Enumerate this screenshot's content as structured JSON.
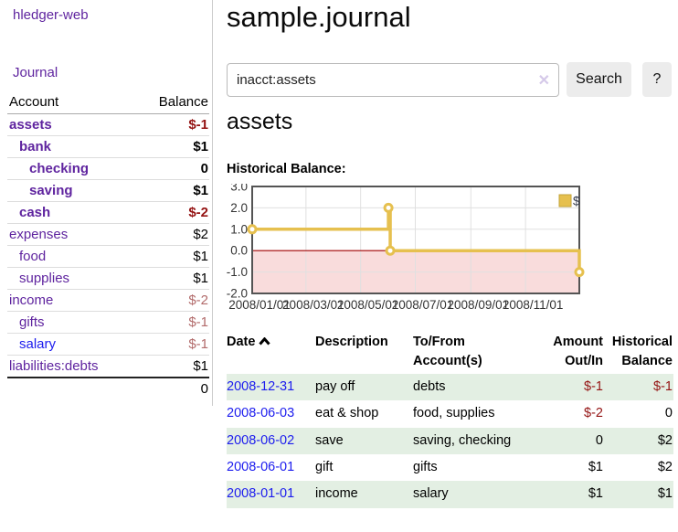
{
  "app": {
    "brand": "hledger-web"
  },
  "colors": {
    "link_purple": "#5f249f",
    "link_blue": "#1c1cee",
    "negative_strong": "#941313",
    "negative_muted": "#b26b6b",
    "row_stripe_green": "#e3efe3",
    "chart_line_gold": "#e6c04f"
  },
  "sidebar": {
    "journal_link": "Journal",
    "accounts_table": {
      "account_header": "Account",
      "balance_header": "Balance",
      "rows": [
        {
          "name": "assets",
          "balance": "$-1",
          "depth": 1,
          "bold": true,
          "value_style": "neg-strong",
          "link_style": "purple"
        },
        {
          "name": "bank",
          "balance": "$1",
          "depth": 2,
          "bold": true,
          "value_style": "normal",
          "link_style": "purple"
        },
        {
          "name": "checking",
          "balance": "0",
          "depth": 3,
          "bold": true,
          "value_style": "normal",
          "link_style": "purple"
        },
        {
          "name": "saving",
          "balance": "$1",
          "depth": 3,
          "bold": true,
          "value_style": "normal",
          "link_style": "purple"
        },
        {
          "name": "cash",
          "balance": "$-2",
          "depth": 2,
          "bold": true,
          "value_style": "neg-strong",
          "link_style": "purple"
        },
        {
          "name": "expenses",
          "balance": "$2",
          "depth": 1,
          "bold": false,
          "value_style": "normal",
          "link_style": "purple"
        },
        {
          "name": "food",
          "balance": "$1",
          "depth": 2,
          "bold": false,
          "value_style": "normal",
          "link_style": "purple"
        },
        {
          "name": "supplies",
          "balance": "$1",
          "depth": 2,
          "bold": false,
          "value_style": "normal",
          "link_style": "purple"
        },
        {
          "name": "income",
          "balance": "$-2",
          "depth": 1,
          "bold": false,
          "value_style": "neg-muted",
          "link_style": "purple"
        },
        {
          "name": "gifts",
          "balance": "$-1",
          "depth": 2,
          "bold": false,
          "value_style": "neg-muted",
          "link_style": "purple"
        },
        {
          "name": "salary",
          "balance": "$-1",
          "depth": 2,
          "bold": false,
          "value_style": "neg-muted",
          "link_style": "blue"
        },
        {
          "name": "liabilities:debts",
          "balance": "$1",
          "depth": 1,
          "bold": false,
          "value_style": "normal",
          "link_style": "purple"
        }
      ],
      "total": "0"
    }
  },
  "header": {
    "title": "sample.journal"
  },
  "search": {
    "value": "inacct:assets",
    "clear_icon": "✕",
    "button_label": "Search",
    "help_label": "?"
  },
  "account_page": {
    "heading": "assets",
    "chart_label": "Historical Balance:"
  },
  "chart_data": {
    "type": "line",
    "step": true,
    "title": "Historical Balance:",
    "legend": {
      "label": "$",
      "position": "top-right",
      "swatch_color": "#e6c04f"
    },
    "series": [
      {
        "name": "$",
        "color": "#e6c04f",
        "points": [
          [
            "2008-01-01",
            1
          ],
          [
            "2008-06-01",
            2
          ],
          [
            "2008-06-03",
            0
          ],
          [
            "2008-12-31",
            -1
          ]
        ]
      }
    ],
    "x_range": [
      "2008-01-01",
      "2008-12-31"
    ],
    "x_ticks": [
      {
        "date": "2008-01-01",
        "label": "2008/01/01"
      },
      {
        "date": "2008-03-01",
        "label": "2008/03/01"
      },
      {
        "date": "2008-05-01",
        "label": "2008/05/01"
      },
      {
        "date": "2008-07-01",
        "label": "2008/07/01"
      },
      {
        "date": "2008-09-01",
        "label": "2008/09/01"
      },
      {
        "date": "2008-11-01",
        "label": "2008/11/01"
      }
    ],
    "y_ticks": [
      "3.0",
      "2.0",
      "1.0",
      "0.0",
      "-1.0",
      "-2.0"
    ],
    "ylim": [
      -2,
      3
    ],
    "grid": true,
    "zero_line_color": "#a40000",
    "negative_region_color": "#f9dcdc",
    "frame_color": "#545454"
  },
  "register": {
    "columns": [
      {
        "label": "Date",
        "sorted": "asc"
      },
      {
        "label": "Description"
      },
      {
        "label": "To/From Account(s)"
      },
      {
        "label": "Amount Out/In"
      },
      {
        "label": "Historical Balance"
      }
    ],
    "rows": [
      {
        "date": "2008-12-31",
        "description": "pay off",
        "accounts": "debts",
        "amount": "$-1",
        "balance": "$-1",
        "amount_style": "neg-strong",
        "balance_style": "neg-strong",
        "striped": true
      },
      {
        "date": "2008-06-03",
        "description": "eat & shop",
        "accounts": "food, supplies",
        "amount": "$-2",
        "balance": "0",
        "amount_style": "neg-strong",
        "balance_style": "normal",
        "striped": false
      },
      {
        "date": "2008-06-02",
        "description": "save",
        "accounts": "saving, checking",
        "amount": "0",
        "balance": "$2",
        "amount_style": "normal",
        "balance_style": "normal",
        "striped": true
      },
      {
        "date": "2008-06-01",
        "description": "gift",
        "accounts": "gifts",
        "amount": "$1",
        "balance": "$2",
        "amount_style": "normal",
        "balance_style": "normal",
        "striped": false
      },
      {
        "date": "2008-01-01",
        "description": "income",
        "accounts": "salary",
        "amount": "$1",
        "balance": "$1",
        "amount_style": "normal",
        "balance_style": "normal",
        "striped": true
      }
    ]
  }
}
